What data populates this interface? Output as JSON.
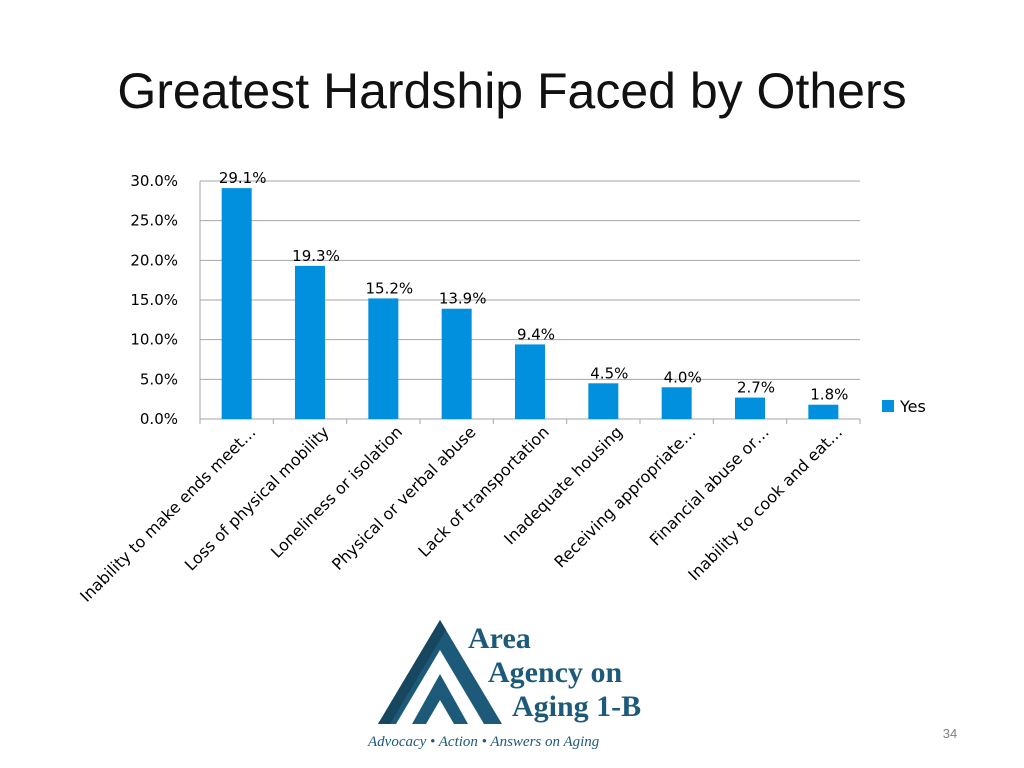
{
  "slide": {
    "title": "Greatest Hardship Faced by Others",
    "page_number": "34"
  },
  "logo": {
    "name_line1": "Area",
    "name_line2": "Agency on",
    "name_line3": "Aging 1-B",
    "tagline": "Advocacy • Action • Answers on Aging",
    "color": "#1d5a7a"
  },
  "chart_data": {
    "type": "bar",
    "categories": [
      "Inability to make ends meet…",
      "Loss of physical mobility",
      "Loneliness or isolation",
      "Physical or verbal abuse",
      "Lack of transportation",
      "Inadequate housing",
      "Receiving appropriate…",
      "Financial abuse or…",
      "Inability to cook and eat…"
    ],
    "series": [
      {
        "name": "Yes",
        "values": [
          29.1,
          19.3,
          15.2,
          13.9,
          9.4,
          4.5,
          4.0,
          2.7,
          1.8
        ],
        "data_labels": [
          "29.1%",
          "19.3%",
          "15.2%",
          "13.9%",
          "9.4%",
          "4.5%",
          "4.0%",
          "2.7%",
          "1.8%"
        ],
        "color": "#0090dd"
      }
    ],
    "ylim": [
      0,
      30
    ],
    "yticks": [
      "0.0%",
      "5.0%",
      "10.0%",
      "15.0%",
      "20.0%",
      "25.0%",
      "30.0%"
    ],
    "ytick_values": [
      0,
      5,
      10,
      15,
      20,
      25,
      30
    ],
    "grid": true,
    "legend_position": "right",
    "gridline_color": "#a6a6a6"
  }
}
